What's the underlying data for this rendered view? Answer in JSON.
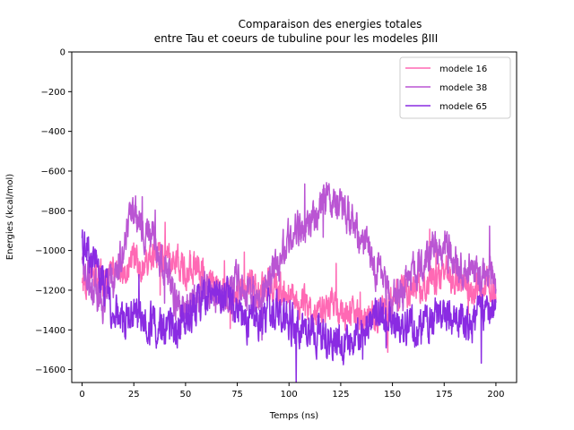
{
  "chart_data": {
    "type": "line",
    "title": "Comparaison des energies totales\nentre Tau et coeurs de tubuline pour les modeles βIII",
    "title_lines": [
      "Comparaison des energies totales",
      "entre Tau et coeurs de tubuline pour les modeles βIII"
    ],
    "xlabel": "Temps (ns)",
    "ylabel": "Energies (kcal/mol)",
    "xlim": [
      -5,
      210
    ],
    "ylim": [
      -1665,
      0
    ],
    "xticks": [
      0,
      25,
      50,
      75,
      100,
      125,
      150,
      175,
      200
    ],
    "yticks": [
      0,
      -200,
      -400,
      -600,
      -800,
      -1000,
      -1200,
      -1400,
      -1600
    ],
    "xtick_labels": [
      "0",
      "25",
      "50",
      "75",
      "100",
      "125",
      "150",
      "175",
      "200"
    ],
    "ytick_labels": [
      "0",
      "−200",
      "−400",
      "−600",
      "−800",
      "−1000",
      "−1200",
      "−1400",
      "−1600"
    ],
    "grid": false,
    "legend": "top-right",
    "legend_labels": [
      "modele 16",
      "modele 38",
      "modele 65"
    ],
    "x_range": [
      0,
      200
    ],
    "series": [
      {
        "name": "modele 16",
        "color": "#ff69b4",
        "trend_x": [
          0,
          5,
          10,
          15,
          20,
          25,
          30,
          35,
          40,
          45,
          50,
          55,
          60,
          65,
          70,
          75,
          80,
          85,
          90,
          95,
          100,
          105,
          110,
          115,
          120,
          125,
          130,
          135,
          140,
          145,
          150,
          155,
          160,
          165,
          170,
          175,
          180,
          185,
          190,
          195,
          200
        ],
        "trend_y": [
          -1150,
          -1120,
          -1140,
          -1120,
          -1080,
          -1050,
          -1080,
          -1020,
          -1050,
          -1060,
          -1100,
          -1080,
          -1150,
          -1200,
          -1220,
          -1250,
          -1180,
          -1200,
          -1150,
          -1200,
          -1220,
          -1250,
          -1300,
          -1320,
          -1280,
          -1300,
          -1320,
          -1350,
          -1320,
          -1300,
          -1250,
          -1200,
          -1220,
          -1180,
          -1150,
          -1100,
          -1150,
          -1180,
          -1200,
          -1150,
          -1200
        ],
        "noise_amplitude": 80
      },
      {
        "name": "modele 38",
        "color": "#ba55d3",
        "trend_x": [
          0,
          5,
          10,
          15,
          20,
          25,
          30,
          35,
          40,
          45,
          50,
          55,
          60,
          65,
          70,
          75,
          80,
          85,
          90,
          95,
          100,
          105,
          110,
          115,
          120,
          125,
          130,
          135,
          140,
          145,
          150,
          155,
          160,
          165,
          170,
          175,
          180,
          185,
          190,
          195,
          200
        ],
        "trend_y": [
          -1050,
          -1200,
          -1250,
          -1150,
          -1000,
          -800,
          -900,
          -950,
          -1100,
          -1250,
          -1300,
          -1250,
          -1200,
          -1250,
          -1200,
          -1150,
          -1200,
          -1250,
          -1150,
          -1050,
          -950,
          -900,
          -880,
          -780,
          -740,
          -780,
          -850,
          -950,
          -1050,
          -1150,
          -1250,
          -1200,
          -1100,
          -1050,
          -1000,
          -1000,
          -1050,
          -1100,
          -1100,
          -1150,
          -1150
        ],
        "noise_amplitude": 90
      },
      {
        "name": "modele 65",
        "color": "#8a2be2",
        "trend_x": [
          0,
          5,
          10,
          15,
          20,
          25,
          30,
          35,
          40,
          45,
          50,
          55,
          60,
          65,
          70,
          75,
          80,
          85,
          90,
          95,
          100,
          105,
          110,
          115,
          120,
          125,
          130,
          135,
          140,
          145,
          150,
          155,
          160,
          165,
          170,
          175,
          180,
          185,
          190,
          195,
          200
        ],
        "trend_y": [
          -950,
          -1050,
          -1150,
          -1300,
          -1350,
          -1320,
          -1350,
          -1380,
          -1400,
          -1380,
          -1350,
          -1300,
          -1250,
          -1200,
          -1250,
          -1300,
          -1350,
          -1350,
          -1300,
          -1300,
          -1350,
          -1380,
          -1400,
          -1420,
          -1450,
          -1480,
          -1450,
          -1400,
          -1350,
          -1300,
          -1350,
          -1380,
          -1400,
          -1400,
          -1350,
          -1300,
          -1350,
          -1400,
          -1350,
          -1300,
          -1250
        ],
        "noise_amplitude": 90
      }
    ]
  }
}
